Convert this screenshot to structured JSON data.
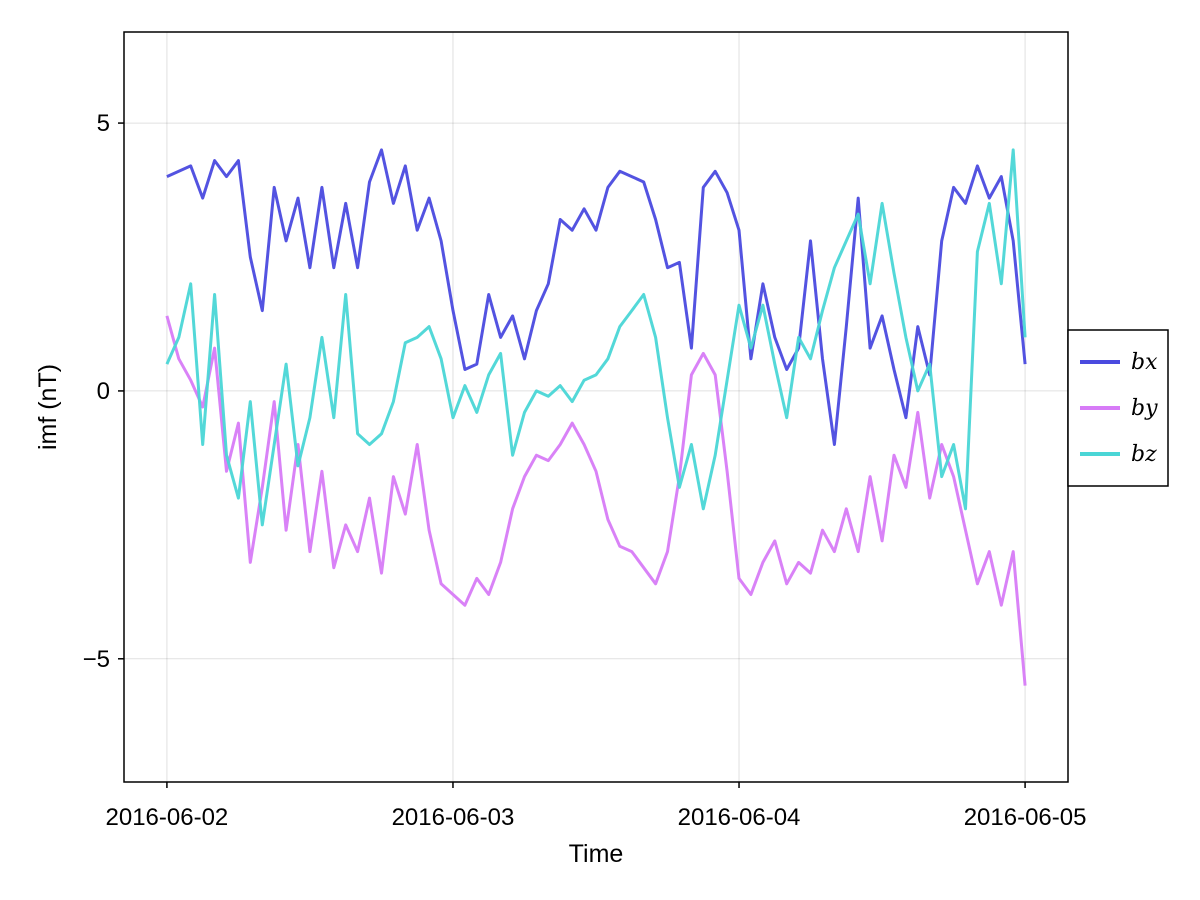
{
  "chart_data": {
    "type": "line",
    "title": "",
    "xlabel": "Time",
    "ylabel": "imf (nT)",
    "x_range": [
      "2016-06-01T22:30",
      "2016-06-05T01:30"
    ],
    "xlim": [
      -0.15,
      3.15
    ],
    "x_ticks": [
      {
        "label": "2016-06-02",
        "date": "2016-06-02",
        "value": 0
      },
      {
        "label": "2016-06-03",
        "date": "2016-06-03",
        "value": 1
      },
      {
        "label": "2016-06-04",
        "date": "2016-06-04",
        "value": 2
      },
      {
        "label": "2016-06-05",
        "date": "2016-06-05",
        "value": 3
      }
    ],
    "ylim": [
      -7.3,
      6.7
    ],
    "y_ticks": [
      {
        "label": "5",
        "value": 5
      },
      {
        "label": "0",
        "value": 0
      },
      {
        "label": "−5",
        "value": -5
      }
    ],
    "grid": true,
    "legend_position": "right",
    "series": [
      {
        "name": "bx",
        "color": "#4a4adf",
        "points": [
          [
            "2016-06-02T00:00",
            4.0
          ],
          [
            "2016-06-02T02:00",
            4.2
          ],
          [
            "2016-06-02T03:00",
            3.6
          ],
          [
            "2016-06-02T04:00",
            4.3
          ],
          [
            "2016-06-02T05:00",
            4.0
          ],
          [
            "2016-06-02T06:00",
            4.3
          ],
          [
            "2016-06-02T07:00",
            2.5
          ],
          [
            "2016-06-02T08:00",
            1.5
          ],
          [
            "2016-06-02T09:00",
            3.8
          ],
          [
            "2016-06-02T10:00",
            2.8
          ],
          [
            "2016-06-02T11:00",
            3.6
          ],
          [
            "2016-06-02T12:00",
            2.3
          ],
          [
            "2016-06-02T13:00",
            3.8
          ],
          [
            "2016-06-02T14:00",
            2.3
          ],
          [
            "2016-06-02T15:00",
            3.5
          ],
          [
            "2016-06-02T16:00",
            2.3
          ],
          [
            "2016-06-02T17:00",
            3.9
          ],
          [
            "2016-06-02T18:00",
            4.5
          ],
          [
            "2016-06-02T19:00",
            3.5
          ],
          [
            "2016-06-02T20:00",
            4.2
          ],
          [
            "2016-06-02T21:00",
            3.0
          ],
          [
            "2016-06-02T22:00",
            3.6
          ],
          [
            "2016-06-02T23:00",
            2.8
          ],
          [
            "2016-06-03T00:00",
            1.5
          ],
          [
            "2016-06-03T01:00",
            0.4
          ],
          [
            "2016-06-03T02:00",
            0.5
          ],
          [
            "2016-06-03T03:00",
            1.8
          ],
          [
            "2016-06-03T04:00",
            1.0
          ],
          [
            "2016-06-03T05:00",
            1.4
          ],
          [
            "2016-06-03T06:00",
            0.6
          ],
          [
            "2016-06-03T07:00",
            1.5
          ],
          [
            "2016-06-03T08:00",
            2.0
          ],
          [
            "2016-06-03T09:00",
            3.2
          ],
          [
            "2016-06-03T10:00",
            3.0
          ],
          [
            "2016-06-03T11:00",
            3.4
          ],
          [
            "2016-06-03T12:00",
            3.0
          ],
          [
            "2016-06-03T13:00",
            3.8
          ],
          [
            "2016-06-03T14:00",
            4.1
          ],
          [
            "2016-06-03T15:00",
            4.0
          ],
          [
            "2016-06-03T16:00",
            3.9
          ],
          [
            "2016-06-03T17:00",
            3.2
          ],
          [
            "2016-06-03T18:00",
            2.3
          ],
          [
            "2016-06-03T19:00",
            2.4
          ],
          [
            "2016-06-03T20:00",
            0.8
          ],
          [
            "2016-06-03T21:00",
            3.8
          ],
          [
            "2016-06-03T22:00",
            4.1
          ],
          [
            "2016-06-03T23:00",
            3.7
          ],
          [
            "2016-06-04T00:00",
            3.0
          ],
          [
            "2016-06-04T01:00",
            0.6
          ],
          [
            "2016-06-04T02:00",
            2.0
          ],
          [
            "2016-06-04T03:00",
            1.0
          ],
          [
            "2016-06-04T04:00",
            0.4
          ],
          [
            "2016-06-04T05:00",
            0.8
          ],
          [
            "2016-06-04T06:00",
            2.8
          ],
          [
            "2016-06-04T07:00",
            0.6
          ],
          [
            "2016-06-04T08:00",
            -1.0
          ],
          [
            "2016-06-04T09:00",
            1.2
          ],
          [
            "2016-06-04T10:00",
            3.6
          ],
          [
            "2016-06-04T11:00",
            0.8
          ],
          [
            "2016-06-04T12:00",
            1.4
          ],
          [
            "2016-06-04T13:00",
            0.4
          ],
          [
            "2016-06-04T14:00",
            -0.5
          ],
          [
            "2016-06-04T15:00",
            1.2
          ],
          [
            "2016-06-04T16:00",
            0.3
          ],
          [
            "2016-06-04T17:00",
            2.8
          ],
          [
            "2016-06-04T18:00",
            3.8
          ],
          [
            "2016-06-04T19:00",
            3.5
          ],
          [
            "2016-06-04T20:00",
            4.2
          ],
          [
            "2016-06-04T21:00",
            3.6
          ],
          [
            "2016-06-04T22:00",
            4.0
          ],
          [
            "2016-06-04T23:00",
            2.8
          ],
          [
            "2016-06-05T00:00",
            0.5
          ]
        ]
      },
      {
        "name": "by",
        "color": "#d77bf7",
        "points": [
          [
            "2016-06-02T00:00",
            1.4
          ],
          [
            "2016-06-02T01:00",
            0.6
          ],
          [
            "2016-06-02T02:00",
            0.2
          ],
          [
            "2016-06-02T03:00",
            -0.3
          ],
          [
            "2016-06-02T04:00",
            0.8
          ],
          [
            "2016-06-02T05:00",
            -1.5
          ],
          [
            "2016-06-02T06:00",
            -0.6
          ],
          [
            "2016-06-02T07:00",
            -3.2
          ],
          [
            "2016-06-02T08:00",
            -1.8
          ],
          [
            "2016-06-02T09:00",
            -0.2
          ],
          [
            "2016-06-02T10:00",
            -2.6
          ],
          [
            "2016-06-02T11:00",
            -1.0
          ],
          [
            "2016-06-02T12:00",
            -3.0
          ],
          [
            "2016-06-02T13:00",
            -1.5
          ],
          [
            "2016-06-02T14:00",
            -3.3
          ],
          [
            "2016-06-02T15:00",
            -2.5
          ],
          [
            "2016-06-02T16:00",
            -3.0
          ],
          [
            "2016-06-02T17:00",
            -2.0
          ],
          [
            "2016-06-02T18:00",
            -3.4
          ],
          [
            "2016-06-02T19:00",
            -1.6
          ],
          [
            "2016-06-02T20:00",
            -2.3
          ],
          [
            "2016-06-02T21:00",
            -1.0
          ],
          [
            "2016-06-02T22:00",
            -2.6
          ],
          [
            "2016-06-02T23:00",
            -3.6
          ],
          [
            "2016-06-03T00:00",
            -3.8
          ],
          [
            "2016-06-03T01:00",
            -4.0
          ],
          [
            "2016-06-03T02:00",
            -3.5
          ],
          [
            "2016-06-03T03:00",
            -3.8
          ],
          [
            "2016-06-03T04:00",
            -3.2
          ],
          [
            "2016-06-03T05:00",
            -2.2
          ],
          [
            "2016-06-03T06:00",
            -1.6
          ],
          [
            "2016-06-03T07:00",
            -1.2
          ],
          [
            "2016-06-03T08:00",
            -1.3
          ],
          [
            "2016-06-03T09:00",
            -1.0
          ],
          [
            "2016-06-03T10:00",
            -0.6
          ],
          [
            "2016-06-03T11:00",
            -1.0
          ],
          [
            "2016-06-03T12:00",
            -1.5
          ],
          [
            "2016-06-03T13:00",
            -2.4
          ],
          [
            "2016-06-03T14:00",
            -2.9
          ],
          [
            "2016-06-03T15:00",
            -3.0
          ],
          [
            "2016-06-03T16:00",
            -3.3
          ],
          [
            "2016-06-03T17:00",
            -3.6
          ],
          [
            "2016-06-03T18:00",
            -3.0
          ],
          [
            "2016-06-03T19:00",
            -1.6
          ],
          [
            "2016-06-03T20:00",
            0.3
          ],
          [
            "2016-06-03T21:00",
            0.7
          ],
          [
            "2016-06-03T22:00",
            0.3
          ],
          [
            "2016-06-03T23:00",
            -1.5
          ],
          [
            "2016-06-04T00:00",
            -3.5
          ],
          [
            "2016-06-04T01:00",
            -3.8
          ],
          [
            "2016-06-04T02:00",
            -3.2
          ],
          [
            "2016-06-04T03:00",
            -2.8
          ],
          [
            "2016-06-04T04:00",
            -3.6
          ],
          [
            "2016-06-04T05:00",
            -3.2
          ],
          [
            "2016-06-04T06:00",
            -3.4
          ],
          [
            "2016-06-04T07:00",
            -2.6
          ],
          [
            "2016-06-04T08:00",
            -3.0
          ],
          [
            "2016-06-04T09:00",
            -2.2
          ],
          [
            "2016-06-04T10:00",
            -3.0
          ],
          [
            "2016-06-04T11:00",
            -1.6
          ],
          [
            "2016-06-04T12:00",
            -2.8
          ],
          [
            "2016-06-04T13:00",
            -1.2
          ],
          [
            "2016-06-04T14:00",
            -1.8
          ],
          [
            "2016-06-04T15:00",
            -0.4
          ],
          [
            "2016-06-04T16:00",
            -2.0
          ],
          [
            "2016-06-04T17:00",
            -1.0
          ],
          [
            "2016-06-04T18:00",
            -1.6
          ],
          [
            "2016-06-04T19:00",
            -2.6
          ],
          [
            "2016-06-04T20:00",
            -3.6
          ],
          [
            "2016-06-04T21:00",
            -3.0
          ],
          [
            "2016-06-04T22:00",
            -4.0
          ],
          [
            "2016-06-04T23:00",
            -3.0
          ],
          [
            "2016-06-05T00:00",
            -5.5
          ]
        ]
      },
      {
        "name": "bz",
        "color": "#4ad6d6",
        "points": [
          [
            "2016-06-02T00:00",
            0.5
          ],
          [
            "2016-06-02T01:00",
            1.0
          ],
          [
            "2016-06-02T02:00",
            2.0
          ],
          [
            "2016-06-02T03:00",
            -1.0
          ],
          [
            "2016-06-02T04:00",
            1.8
          ],
          [
            "2016-06-02T05:00",
            -1.2
          ],
          [
            "2016-06-02T06:00",
            -2.0
          ],
          [
            "2016-06-02T07:00",
            -0.2
          ],
          [
            "2016-06-02T08:00",
            -2.5
          ],
          [
            "2016-06-02T09:00",
            -1.0
          ],
          [
            "2016-06-02T10:00",
            0.5
          ],
          [
            "2016-06-02T11:00",
            -1.4
          ],
          [
            "2016-06-02T12:00",
            -0.5
          ],
          [
            "2016-06-02T13:00",
            1.0
          ],
          [
            "2016-06-02T14:00",
            -0.5
          ],
          [
            "2016-06-02T15:00",
            1.8
          ],
          [
            "2016-06-02T16:00",
            -0.8
          ],
          [
            "2016-06-02T17:00",
            -1.0
          ],
          [
            "2016-06-02T18:00",
            -0.8
          ],
          [
            "2016-06-02T19:00",
            -0.2
          ],
          [
            "2016-06-02T20:00",
            0.9
          ],
          [
            "2016-06-02T21:00",
            1.0
          ],
          [
            "2016-06-02T22:00",
            1.2
          ],
          [
            "2016-06-02T23:00",
            0.6
          ],
          [
            "2016-06-03T00:00",
            -0.5
          ],
          [
            "2016-06-03T01:00",
            0.1
          ],
          [
            "2016-06-03T02:00",
            -0.4
          ],
          [
            "2016-06-03T03:00",
            0.3
          ],
          [
            "2016-06-03T04:00",
            0.7
          ],
          [
            "2016-06-03T05:00",
            -1.2
          ],
          [
            "2016-06-03T06:00",
            -0.4
          ],
          [
            "2016-06-03T07:00",
            0.0
          ],
          [
            "2016-06-03T08:00",
            -0.1
          ],
          [
            "2016-06-03T09:00",
            0.1
          ],
          [
            "2016-06-03T10:00",
            -0.2
          ],
          [
            "2016-06-03T11:00",
            0.2
          ],
          [
            "2016-06-03T12:00",
            0.3
          ],
          [
            "2016-06-03T13:00",
            0.6
          ],
          [
            "2016-06-03T14:00",
            1.2
          ],
          [
            "2016-06-03T15:00",
            1.5
          ],
          [
            "2016-06-03T16:00",
            1.8
          ],
          [
            "2016-06-03T17:00",
            1.0
          ],
          [
            "2016-06-03T18:00",
            -0.5
          ],
          [
            "2016-06-03T19:00",
            -1.8
          ],
          [
            "2016-06-03T20:00",
            -1.0
          ],
          [
            "2016-06-03T21:00",
            -2.2
          ],
          [
            "2016-06-03T22:00",
            -1.2
          ],
          [
            "2016-06-03T23:00",
            0.2
          ],
          [
            "2016-06-04T00:00",
            1.6
          ],
          [
            "2016-06-04T01:00",
            0.8
          ],
          [
            "2016-06-04T02:00",
            1.6
          ],
          [
            "2016-06-04T03:00",
            0.5
          ],
          [
            "2016-06-04T04:00",
            -0.5
          ],
          [
            "2016-06-04T05:00",
            1.0
          ],
          [
            "2016-06-04T06:00",
            0.6
          ],
          [
            "2016-06-04T07:00",
            1.5
          ],
          [
            "2016-06-04T08:00",
            2.3
          ],
          [
            "2016-06-04T09:00",
            2.8
          ],
          [
            "2016-06-04T10:00",
            3.3
          ],
          [
            "2016-06-04T11:00",
            2.0
          ],
          [
            "2016-06-04T12:00",
            3.5
          ],
          [
            "2016-06-04T13:00",
            2.2
          ],
          [
            "2016-06-04T14:00",
            1.0
          ],
          [
            "2016-06-04T15:00",
            0.0
          ],
          [
            "2016-06-04T16:00",
            0.5
          ],
          [
            "2016-06-04T17:00",
            -1.6
          ],
          [
            "2016-06-04T18:00",
            -1.0
          ],
          [
            "2016-06-04T19:00",
            -2.2
          ],
          [
            "2016-06-04T20:00",
            2.6
          ],
          [
            "2016-06-04T21:00",
            3.5
          ],
          [
            "2016-06-04T22:00",
            2.0
          ],
          [
            "2016-06-04T23:00",
            4.5
          ],
          [
            "2016-06-05T00:00",
            1.0
          ]
        ]
      }
    ]
  }
}
